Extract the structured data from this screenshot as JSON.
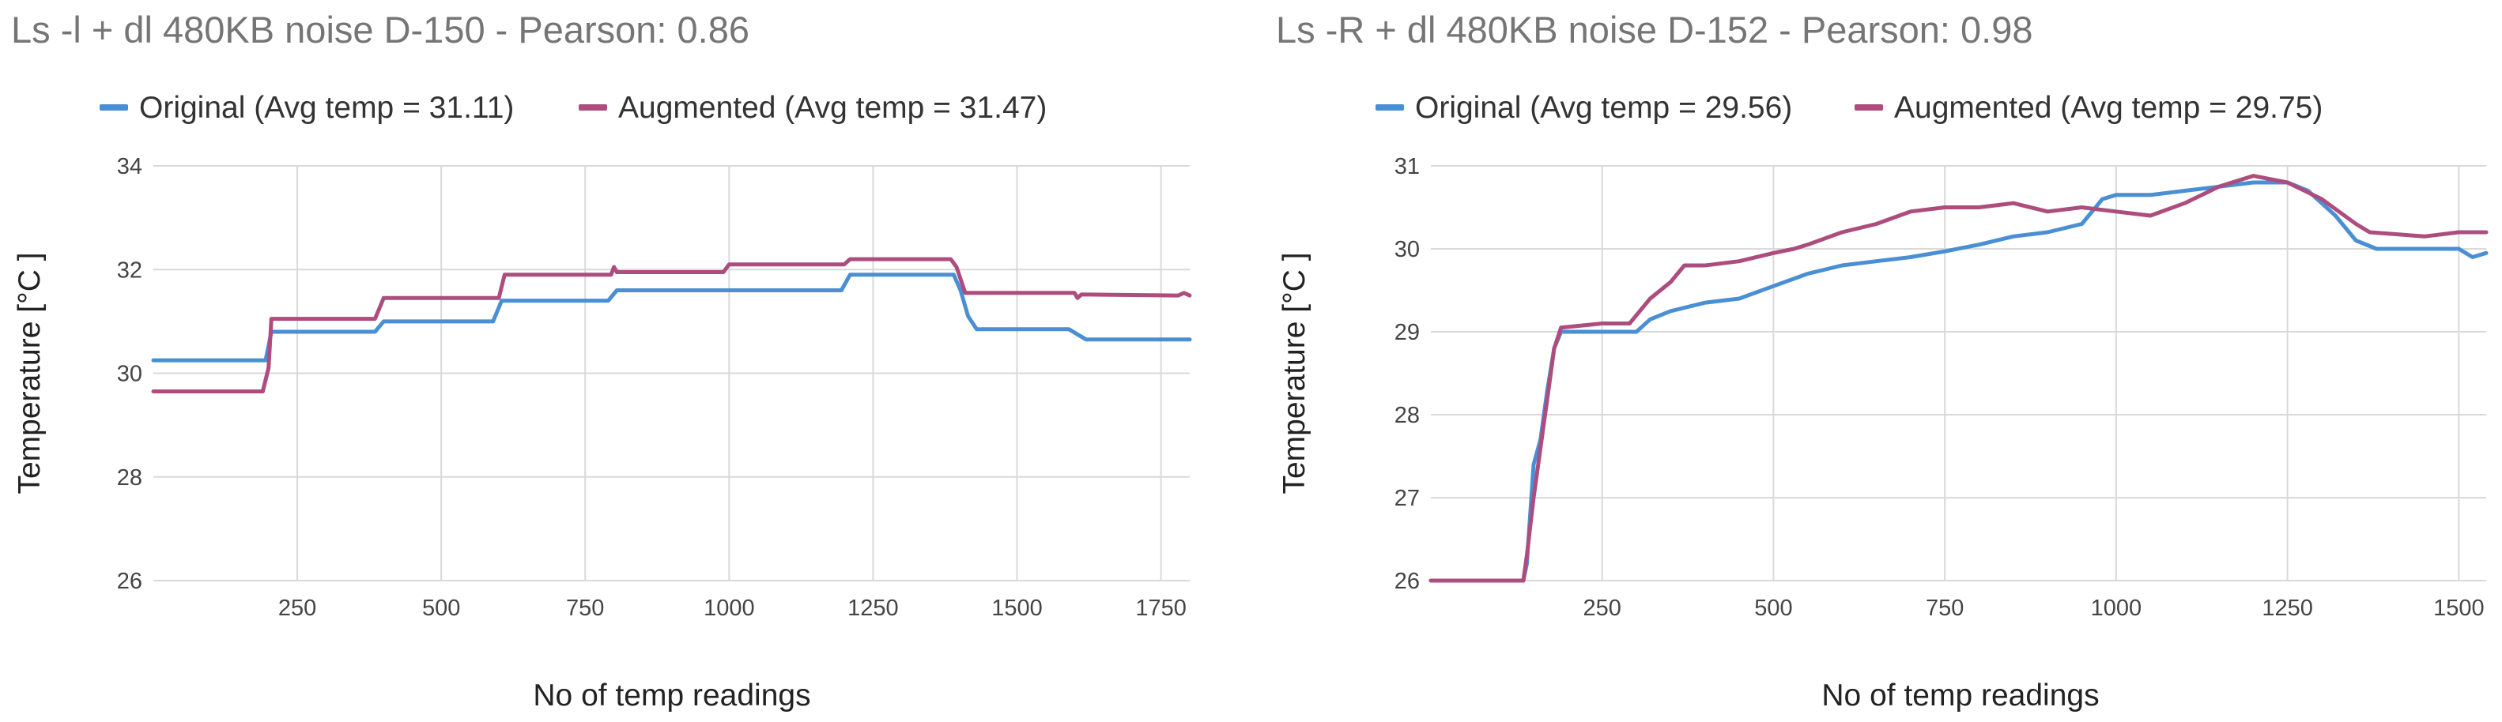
{
  "chart_data": [
    {
      "type": "line",
      "title": "Ls -l + dl 480KB noise D-150 - Pearson: 0.86",
      "xlabel": "No of temp readings",
      "ylabel": "Temperature [°C ]",
      "xlim": [
        0,
        1800
      ],
      "ylim": [
        26,
        34
      ],
      "xticks": [
        250,
        500,
        750,
        1000,
        1250,
        1500,
        1750
      ],
      "yticks": [
        26,
        28,
        30,
        32,
        34
      ],
      "grid": true,
      "legend": "top",
      "series": [
        {
          "name": "Original (Avg temp = 31.11)",
          "color": "#4a8fd4",
          "points": [
            [
              0,
              30.25
            ],
            [
              195,
              30.25
            ],
            [
              205,
              30.8
            ],
            [
              385,
              30.8
            ],
            [
              400,
              31.0
            ],
            [
              590,
              31.0
            ],
            [
              605,
              31.4
            ],
            [
              790,
              31.4
            ],
            [
              805,
              31.6
            ],
            [
              1195,
              31.6
            ],
            [
              1210,
              31.9
            ],
            [
              1390,
              31.9
            ],
            [
              1402,
              31.6
            ],
            [
              1415,
              31.1
            ],
            [
              1430,
              30.85
            ],
            [
              1590,
              30.85
            ],
            [
              1620,
              30.65
            ],
            [
              1800,
              30.65
            ]
          ]
        },
        {
          "name": "Augmented (Avg temp = 31.47)",
          "color": "#ad4d7e",
          "points": [
            [
              0,
              29.65
            ],
            [
              190,
              29.65
            ],
            [
              200,
              30.1
            ],
            [
              205,
              31.05
            ],
            [
              385,
              31.05
            ],
            [
              400,
              31.45
            ],
            [
              600,
              31.45
            ],
            [
              610,
              31.9
            ],
            [
              795,
              31.9
            ],
            [
              800,
              32.05
            ],
            [
              805,
              31.95
            ],
            [
              990,
              31.95
            ],
            [
              1000,
              32.1
            ],
            [
              1200,
              32.1
            ],
            [
              1210,
              32.2
            ],
            [
              1385,
              32.2
            ],
            [
              1395,
              32.05
            ],
            [
              1410,
              31.55
            ],
            [
              1600,
              31.55
            ],
            [
              1605,
              31.45
            ],
            [
              1612,
              31.52
            ],
            [
              1780,
              31.5
            ],
            [
              1790,
              31.55
            ],
            [
              1800,
              31.5
            ]
          ]
        }
      ]
    },
    {
      "type": "line",
      "title": "Ls -R + dl 480KB noise D-152 - Pearson: 0.98",
      "xlabel": "No of temp readings",
      "ylabel": "Temperature [°C ]",
      "xlim": [
        0,
        1540
      ],
      "ylim": [
        26,
        31
      ],
      "xticks": [
        250,
        500,
        750,
        1000,
        1250,
        1500
      ],
      "yticks": [
        26,
        27,
        28,
        29,
        30,
        31
      ],
      "grid": true,
      "legend": "top",
      "series": [
        {
          "name": "Original (Avg temp = 29.56)",
          "color": "#4a8fd4",
          "points": [
            [
              0,
              26.0
            ],
            [
              135,
              26.0
            ],
            [
              140,
              26.2
            ],
            [
              150,
              27.4
            ],
            [
              160,
              27.7
            ],
            [
              170,
              28.3
            ],
            [
              180,
              28.8
            ],
            [
              190,
              29.0
            ],
            [
              250,
              29.0
            ],
            [
              300,
              29.0
            ],
            [
              320,
              29.15
            ],
            [
              350,
              29.25
            ],
            [
              400,
              29.35
            ],
            [
              450,
              29.4
            ],
            [
              500,
              29.55
            ],
            [
              550,
              29.7
            ],
            [
              600,
              29.8
            ],
            [
              650,
              29.85
            ],
            [
              700,
              29.9
            ],
            [
              750,
              29.97
            ],
            [
              800,
              30.05
            ],
            [
              850,
              30.15
            ],
            [
              900,
              30.2
            ],
            [
              950,
              30.3
            ],
            [
              980,
              30.6
            ],
            [
              1000,
              30.65
            ],
            [
              1050,
              30.65
            ],
            [
              1100,
              30.7
            ],
            [
              1150,
              30.75
            ],
            [
              1200,
              30.8
            ],
            [
              1250,
              30.8
            ],
            [
              1280,
              30.7
            ],
            [
              1300,
              30.55
            ],
            [
              1320,
              30.4
            ],
            [
              1350,
              30.1
            ],
            [
              1380,
              30.0
            ],
            [
              1450,
              30.0
            ],
            [
              1500,
              30.0
            ],
            [
              1520,
              29.9
            ],
            [
              1540,
              29.95
            ]
          ]
        },
        {
          "name": "Augmented (Avg temp = 29.75)",
          "color": "#ad4d7e",
          "points": [
            [
              0,
              26.0
            ],
            [
              135,
              26.0
            ],
            [
              140,
              26.3
            ],
            [
              150,
              27.0
            ],
            [
              160,
              27.6
            ],
            [
              170,
              28.2
            ],
            [
              180,
              28.8
            ],
            [
              190,
              29.05
            ],
            [
              250,
              29.1
            ],
            [
              290,
              29.1
            ],
            [
              320,
              29.4
            ],
            [
              350,
              29.6
            ],
            [
              370,
              29.8
            ],
            [
              400,
              29.8
            ],
            [
              450,
              29.85
            ],
            [
              500,
              29.95
            ],
            [
              530,
              30.0
            ],
            [
              550,
              30.05
            ],
            [
              600,
              30.2
            ],
            [
              650,
              30.3
            ],
            [
              700,
              30.45
            ],
            [
              750,
              30.5
            ],
            [
              800,
              30.5
            ],
            [
              850,
              30.55
            ],
            [
              900,
              30.45
            ],
            [
              950,
              30.5
            ],
            [
              1000,
              30.45
            ],
            [
              1050,
              30.4
            ],
            [
              1100,
              30.55
            ],
            [
              1150,
              30.75
            ],
            [
              1200,
              30.88
            ],
            [
              1250,
              30.8
            ],
            [
              1300,
              30.6
            ],
            [
              1350,
              30.3
            ],
            [
              1370,
              30.2
            ],
            [
              1450,
              30.15
            ],
            [
              1500,
              30.2
            ],
            [
              1540,
              30.2
            ]
          ]
        }
      ]
    }
  ]
}
